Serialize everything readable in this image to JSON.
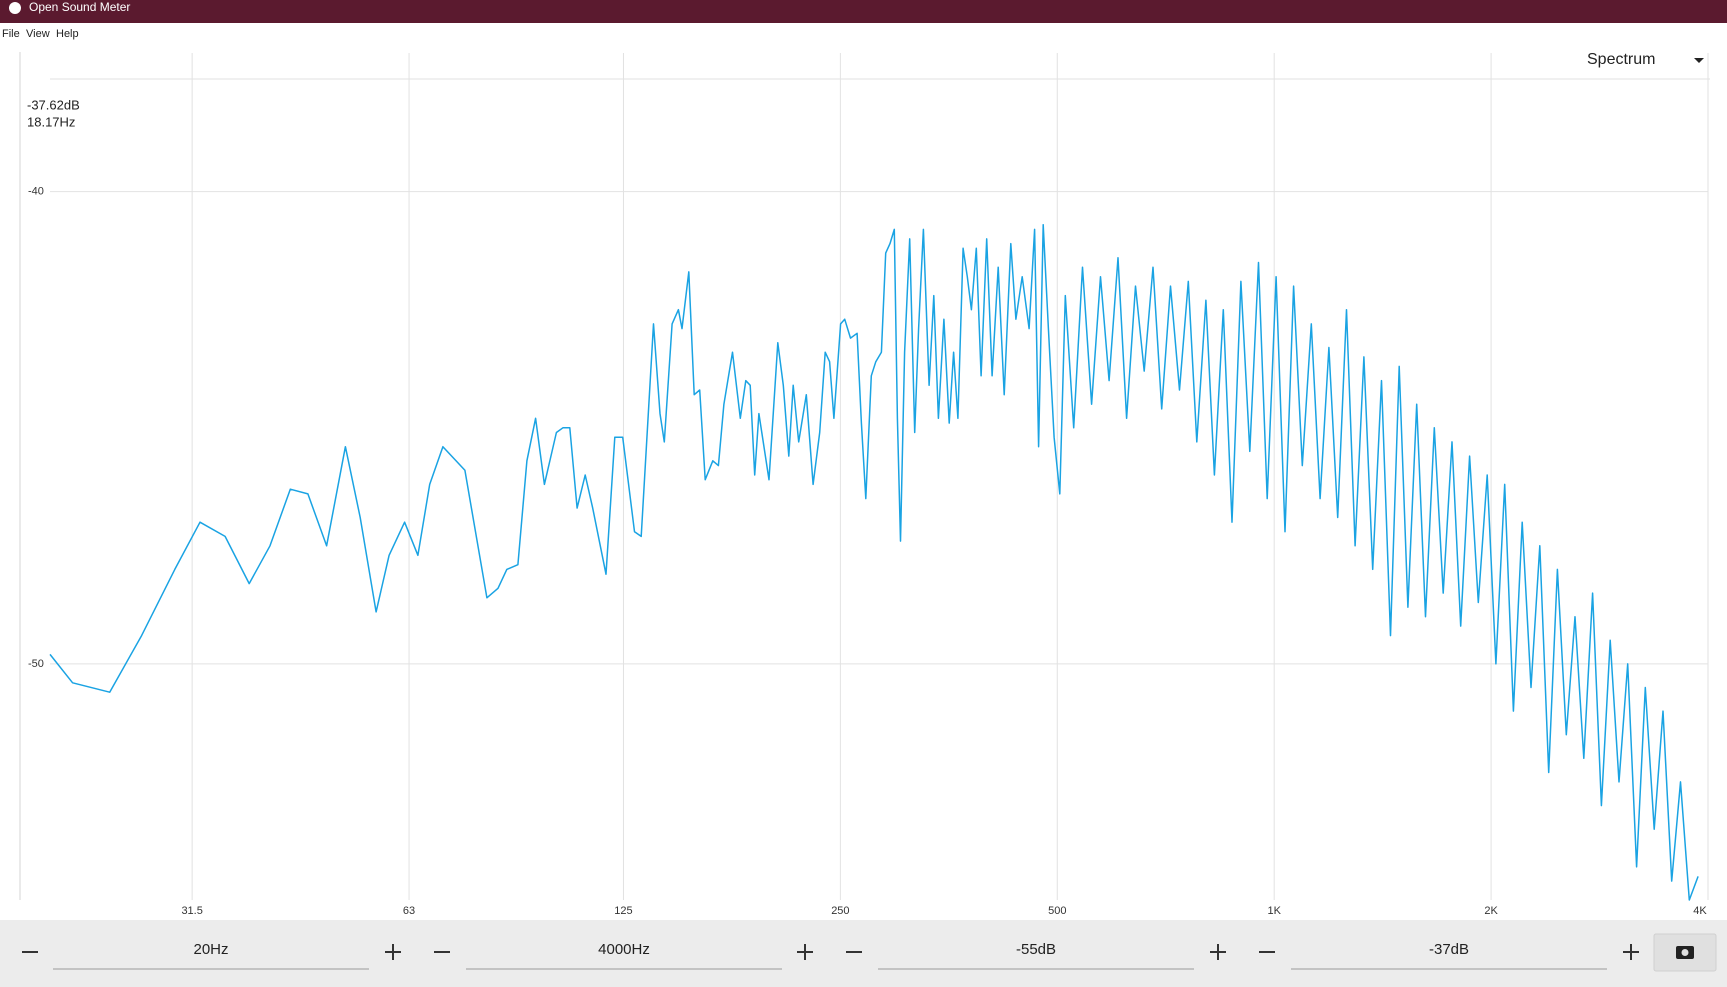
{
  "window": {
    "title": "Open Sound Meter"
  },
  "menu": [
    "File",
    "View",
    "Help"
  ],
  "view_selector": "Spectrum",
  "cursor": {
    "level": "-37.62dB",
    "frequency": "18.17Hz"
  },
  "controls": [
    "20Hz",
    "4000Hz",
    "-55dB",
    "-37dB"
  ],
  "chart_data": {
    "type": "line",
    "color": "#1aa3e3",
    "xscale": "log",
    "grid": true,
    "xlim": [
      20,
      4000
    ],
    "ylim": [
      -55,
      -37
    ],
    "xticks": [
      31.5,
      63,
      125,
      250,
      500,
      {
        "value": 1000,
        "label": "1K"
      },
      {
        "value": 2000,
        "label": "2K"
      },
      {
        "value": 4000,
        "label": "4K"
      }
    ],
    "yticks": [
      -40,
      -50
    ],
    "x": [
      20,
      21.5,
      24.2,
      26.8,
      29.8,
      32.3,
      35.0,
      37.8,
      40.4,
      43.1,
      45.6,
      48.4,
      51.4,
      53.9,
      56.7,
      59.1,
      62.1,
      64.8,
      67.3,
      70.2,
      75.3,
      80.8,
      83.7,
      86.1,
      89.2,
      91.8,
      94.4,
      97.1,
      100.9,
      103,
      105.3,
      107.8,
      110.6,
      113.3,
      118.2,
      121.6,
      124.7,
      129.5,
      132.3,
      137.6,
      140.5,
      142.4,
      146,
      149,
      150.7,
      154,
      156.7,
      159.5,
      162.3,
      166.3,
      169.3,
      172.3,
      177.1,
      181.6,
      184.8,
      187.4,
      190.1,
      192.7,
      199,
      204.7,
      208.3,
      212,
      215,
      218.8,
      224.2,
      229.1,
      234,
      238.2,
      241.5,
      244.9,
      250.2,
      253.5,
      258.2,
      263.7,
      267.4,
      271.2,
      276,
      280,
      285,
      289,
      293,
      297,
      300,
      303,
      307,
      312,
      317,
      321,
      326,
      332,
      337,
      342,
      348,
      354,
      359,
      364,
      370,
      375,
      380,
      386,
      392,
      399,
      406,
      414,
      422,
      431,
      438,
      447,
      457,
      465,
      471,
      478,
      486,
      495,
      504,
      513,
      527,
      542,
      558,
      574,
      590,
      607,
      624,
      642,
      660,
      679,
      698,
      718,
      739,
      760,
      781,
      804,
      826,
      850,
      874,
      899,
      925,
      951,
      978,
      1006,
      1035,
      1064,
      1094,
      1126,
      1158,
      1191,
      1225,
      1260,
      1295,
      1332,
      1370,
      1409,
      1450,
      1491,
      1533,
      1577,
      1622,
      1668,
      1716,
      1765,
      1815,
      1867,
      1920,
      1975,
      2031,
      2089,
      2148,
      2209,
      2272,
      2337,
      2404,
      2472,
      2543,
      2615,
      2690,
      2766,
      2845,
      2926,
      3010,
      3095,
      3184,
      3274,
      3368,
      3464,
      3562,
      3664,
      3768,
      3875
    ],
    "values": [
      -49.8,
      -50.4,
      -50.6,
      -49.4,
      -48.0,
      -47.0,
      -47.3,
      -48.3,
      -47.5,
      -46.3,
      -46.4,
      -47.5,
      -45.4,
      -46.9,
      -48.9,
      -47.7,
      -47.0,
      -47.7,
      -46.2,
      -45.4,
      -45.9,
      -48.6,
      -48.4,
      -48.0,
      -47.9,
      -45.7,
      -44.8,
      -46.2,
      -45.1,
      -45.0,
      -45.0,
      -46.7,
      -46.0,
      -46.7,
      -48.1,
      -45.2,
      -45.2,
      -47.2,
      -47.3,
      -42.8,
      -44.7,
      -45.3,
      -42.8,
      -42.5,
      -42.9,
      -41.7,
      -44.3,
      -44.2,
      -46.1,
      -45.7,
      -45.8,
      -44.5,
      -43.4,
      -44.8,
      -44.0,
      -44.1,
      -46.0,
      -44.7,
      -46.1,
      -43.2,
      -44.1,
      -45.6,
      -44.1,
      -45.3,
      -44.3,
      -46.2,
      -45.1,
      -43.4,
      -43.6,
      -44.8,
      -42.8,
      -42.7,
      -43.1,
      -43.0,
      -44.9,
      -46.5,
      -43.9,
      -43.6,
      -43.4,
      -41.3,
      -41.1,
      -40.8,
      -44.8,
      -47.4,
      -43.4,
      -41.0,
      -45.1,
      -42.9,
      -40.8,
      -44.1,
      -42.2,
      -44.8,
      -42.7,
      -44.9,
      -43.4,
      -44.8,
      -41.2,
      -41.8,
      -42.5,
      -41.2,
      -43.9,
      -41.0,
      -43.9,
      -41.6,
      -44.3,
      -41.1,
      -42.7,
      -41.8,
      -42.9,
      -40.8,
      -45.4,
      -40.7,
      -42.9,
      -45.2,
      -46.4,
      -42.2,
      -45.0,
      -41.6,
      -44.5,
      -41.8,
      -44.0,
      -41.4,
      -44.8,
      -42.0,
      -43.8,
      -41.6,
      -44.6,
      -42.0,
      -44.2,
      -41.9,
      -45.3,
      -42.3,
      -46.0,
      -42.5,
      -47.0,
      -41.9,
      -45.5,
      -41.5,
      -46.5,
      -41.8,
      -47.2,
      -42.0,
      -45.8,
      -42.8,
      -46.5,
      -43.3,
      -46.9,
      -42.5,
      -47.5,
      -43.5,
      -48.0,
      -44.0,
      -49.4,
      -43.7,
      -48.8,
      -44.5,
      -49.0,
      -45.0,
      -48.5,
      -45.3,
      -49.2,
      -45.6,
      -48.7,
      -46.0,
      -50.0,
      -46.2,
      -51.0,
      -47.0,
      -50.5,
      -47.5,
      -52.3,
      -48.0,
      -51.5,
      -49.0,
      -52.0,
      -48.5,
      -53.0,
      -49.5,
      -52.5,
      -50.0,
      -54.3,
      -50.5,
      -53.5,
      -51.0,
      -54.6,
      -52.5,
      -55.0,
      -54.5
    ]
  }
}
